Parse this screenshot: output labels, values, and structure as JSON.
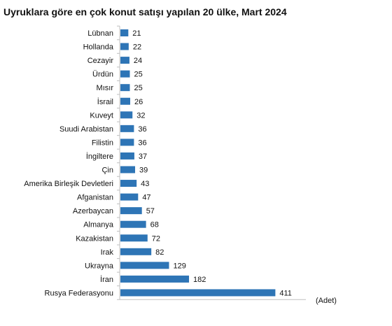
{
  "chart_data": {
    "type": "bar",
    "orientation": "horizontal",
    "title": "Uyruklara göre en çok konut satışı yapılan 20 ülke, Mart 2024",
    "unit_label": "(Adet)",
    "categories": [
      "Lübnan",
      "Hollanda",
      "Cezayir",
      "Ürdün",
      "Mısır",
      "İsrail",
      "Kuveyt",
      "Suudi Arabistan",
      "Filistin",
      "İngiltere",
      "Çin",
      "Amerika Birleşik Devletleri",
      "Afganistan",
      "Azerbaycan",
      "Almanya",
      "Kazakistan",
      "Irak",
      "Ukrayna",
      "İran",
      "Rusya Federasyonu"
    ],
    "values": [
      21,
      22,
      24,
      25,
      25,
      26,
      32,
      36,
      36,
      37,
      39,
      43,
      47,
      57,
      68,
      72,
      82,
      129,
      182,
      411
    ],
    "xlim": [
      0,
      465
    ],
    "grid": false,
    "legend": "none",
    "bar_color": "#2E75B6",
    "axis_color": "#bfbfbf"
  }
}
